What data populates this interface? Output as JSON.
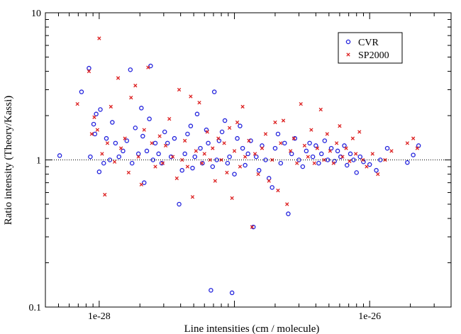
{
  "chart_data": {
    "type": "scatter",
    "title": "",
    "xlabel": "Line intensities (cm / molecule)",
    "ylabel": "Ratio intensity (Theory/Kassi)",
    "x_scale": "log",
    "y_scale": "log",
    "xlim": [
      4e-29,
      4e-26
    ],
    "ylim": [
      0.1,
      10
    ],
    "x_tick_labels": [
      "1e-28",
      "1e-26"
    ],
    "y_tick_labels": [
      "0.1",
      "1",
      "10"
    ],
    "reference_line": {
      "y": 1,
      "style": "dotted"
    },
    "grid": false,
    "legend_placement": "top-right",
    "series": [
      {
        "name": "CVR",
        "marker": "open-circle",
        "color": "#2222dd",
        "points": [
          [
            5.1e-29,
            1.07
          ],
          [
            7.4e-29,
            2.9
          ],
          [
            8.4e-29,
            4.2
          ],
          [
            8.6e-29,
            1.05
          ],
          [
            9.1e-29,
            1.75
          ],
          [
            9.3e-29,
            1.5
          ],
          [
            9.5e-29,
            2.05
          ],
          [
            1e-28,
            0.83
          ],
          [
            1.02e-28,
            2.2
          ],
          [
            1.08e-28,
            0.95
          ],
          [
            1.13e-28,
            1.4
          ],
          [
            1.2e-28,
            1.0
          ],
          [
            1.25e-28,
            1.8
          ],
          [
            1.32e-28,
            1.3
          ],
          [
            1.4e-28,
            1.05
          ],
          [
            1.5e-28,
            1.15
          ],
          [
            1.6e-28,
            1.35
          ],
          [
            1.7e-28,
            4.1
          ],
          [
            1.75e-28,
            0.95
          ],
          [
            1.85e-28,
            1.65
          ],
          [
            1.95e-28,
            1.1
          ],
          [
            2.05e-28,
            2.25
          ],
          [
            2.1e-28,
            1.45
          ],
          [
            2.15e-28,
            0.7
          ],
          [
            2.25e-28,
            1.15
          ],
          [
            2.35e-28,
            1.9
          ],
          [
            2.4e-28,
            4.35
          ],
          [
            2.5e-28,
            1.0
          ],
          [
            2.6e-28,
            1.3
          ],
          [
            2.75e-28,
            1.1
          ],
          [
            2.9e-28,
            0.95
          ],
          [
            3.05e-28,
            1.55
          ],
          [
            3.2e-28,
            1.3
          ],
          [
            3.4e-28,
            1.05
          ],
          [
            3.6e-28,
            1.4
          ],
          [
            3.9e-28,
            0.5
          ],
          [
            4.1e-28,
            0.85
          ],
          [
            4.3e-28,
            1.1
          ],
          [
            4.5e-28,
            1.5
          ],
          [
            4.75e-28,
            1.7
          ],
          [
            4.9e-28,
            0.88
          ],
          [
            5.1e-28,
            1.05
          ],
          [
            5.3e-28,
            2.05
          ],
          [
            5.6e-28,
            1.2
          ],
          [
            5.8e-28,
            0.95
          ],
          [
            6.2e-28,
            1.6
          ],
          [
            6.4e-28,
            1.3
          ],
          [
            6.7e-28,
            0.13
          ],
          [
            6.9e-28,
            0.9
          ],
          [
            7.1e-28,
            2.9
          ],
          [
            7.4e-28,
            1.0
          ],
          [
            7.7e-28,
            1.35
          ],
          [
            8.1e-28,
            1.55
          ],
          [
            8.5e-28,
            1.85
          ],
          [
            8.9e-28,
            0.95
          ],
          [
            9.2e-28,
            1.05
          ],
          [
            9.6e-28,
            0.125
          ],
          [
            1e-27,
            0.8
          ],
          [
            1.05e-27,
            1.4
          ],
          [
            1.1e-27,
            1.7
          ],
          [
            1.15e-27,
            1.2
          ],
          [
            1.2e-27,
            0.92
          ],
          [
            1.26e-27,
            1.1
          ],
          [
            1.32e-27,
            1.35
          ],
          [
            1.38e-27,
            0.35
          ],
          [
            1.45e-27,
            1.05
          ],
          [
            1.52e-27,
            0.85
          ],
          [
            1.6e-27,
            1.25
          ],
          [
            1.7e-27,
            1.0
          ],
          [
            1.8e-27,
            0.75
          ],
          [
            1.9e-27,
            0.65
          ],
          [
            2e-27,
            1.2
          ],
          [
            2.1e-27,
            1.5
          ],
          [
            2.2e-27,
            0.95
          ],
          [
            2.35e-27,
            1.3
          ],
          [
            2.5e-27,
            0.43
          ],
          [
            2.65e-27,
            1.1
          ],
          [
            2.8e-27,
            1.4
          ],
          [
            3e-27,
            1.0
          ],
          [
            3.2e-27,
            0.9
          ],
          [
            3.4e-27,
            1.15
          ],
          [
            3.6e-27,
            1.3
          ],
          [
            3.8e-27,
            1.05
          ],
          [
            4e-27,
            1.25
          ],
          [
            4.2e-27,
            0.95
          ],
          [
            4.4e-27,
            1.1
          ],
          [
            4.65e-27,
            1.35
          ],
          [
            4.9e-27,
            1.0
          ],
          [
            5.2e-27,
            1.2
          ],
          [
            5.5e-27,
            0.98
          ],
          [
            5.8e-27,
            1.15
          ],
          [
            6.1e-27,
            1.05
          ],
          [
            6.5e-27,
            1.25
          ],
          [
            6.8e-27,
            0.92
          ],
          [
            7.2e-27,
            1.1
          ],
          [
            7.6e-27,
            1.0
          ],
          [
            8e-27,
            0.82
          ],
          [
            8.5e-27,
            1.05
          ],
          [
            9e-27,
            0.97
          ],
          [
            1e-26,
            0.93
          ],
          [
            1.12e-26,
            0.85
          ],
          [
            1.2e-26,
            1.0
          ],
          [
            1.35e-26,
            1.2
          ],
          [
            1.9e-26,
            0.96
          ],
          [
            2.1e-26,
            1.08
          ],
          [
            2.3e-26,
            1.25
          ]
        ]
      },
      {
        "name": "SP2000",
        "marker": "cross",
        "color": "#dd2222",
        "points": [
          [
            6.9e-29,
            2.4
          ],
          [
            8.4e-29,
            4.0
          ],
          [
            8.8e-29,
            1.5
          ],
          [
            9.2e-29,
            1.95
          ],
          [
            9.7e-29,
            1.6
          ],
          [
            1e-28,
            6.7
          ],
          [
            1.05e-28,
            1.1
          ],
          [
            1.1e-28,
            0.58
          ],
          [
            1.15e-28,
            1.3
          ],
          [
            1.22e-28,
            2.3
          ],
          [
            1.3e-28,
            0.97
          ],
          [
            1.38e-28,
            3.6
          ],
          [
            1.45e-28,
            1.2
          ],
          [
            1.55e-28,
            1.4
          ],
          [
            1.65e-28,
            0.82
          ],
          [
            1.72e-28,
            2.65
          ],
          [
            1.85e-28,
            3.2
          ],
          [
            1.95e-28,
            1.05
          ],
          [
            2.05e-28,
            0.68
          ],
          [
            2.15e-28,
            1.6
          ],
          [
            2.3e-28,
            4.25
          ],
          [
            2.45e-28,
            1.3
          ],
          [
            2.6e-28,
            0.9
          ],
          [
            2.8e-28,
            1.45
          ],
          [
            2.95e-28,
            0.95
          ],
          [
            3.1e-28,
            1.25
          ],
          [
            3.3e-28,
            1.9
          ],
          [
            3.5e-28,
            1.05
          ],
          [
            3.75e-28,
            0.75
          ],
          [
            3.9e-28,
            3.0
          ],
          [
            4.1e-28,
            1.0
          ],
          [
            4.3e-28,
            1.35
          ],
          [
            4.5e-28,
            0.9
          ],
          [
            4.75e-28,
            2.7
          ],
          [
            4.9e-28,
            0.56
          ],
          [
            5.2e-28,
            1.15
          ],
          [
            5.5e-28,
            2.45
          ],
          [
            5.75e-28,
            0.95
          ],
          [
            6e-28,
            1.1
          ],
          [
            6.3e-28,
            1.55
          ],
          [
            6.6e-28,
            1.0
          ],
          [
            6.9e-28,
            1.2
          ],
          [
            7.2e-28,
            0.72
          ],
          [
            7.6e-28,
            1.4
          ],
          [
            8e-28,
            1.0
          ],
          [
            8.4e-28,
            1.3
          ],
          [
            8.8e-28,
            0.82
          ],
          [
            9.2e-28,
            1.65
          ],
          [
            9.6e-28,
            0.55
          ],
          [
            1e-27,
            1.15
          ],
          [
            1.05e-27,
            1.8
          ],
          [
            1.1e-27,
            0.9
          ],
          [
            1.15e-27,
            2.3
          ],
          [
            1.2e-27,
            1.05
          ],
          [
            1.28e-27,
            1.35
          ],
          [
            1.35e-27,
            0.35
          ],
          [
            1.42e-27,
            1.1
          ],
          [
            1.5e-27,
            0.8
          ],
          [
            1.6e-27,
            1.2
          ],
          [
            1.7e-27,
            1.5
          ],
          [
            1.8e-27,
            0.72
          ],
          [
            1.9e-27,
            1.0
          ],
          [
            2e-27,
            1.8
          ],
          [
            2.1e-27,
            0.62
          ],
          [
            2.2e-27,
            1.3
          ],
          [
            2.3e-27,
            1.85
          ],
          [
            2.45e-27,
            0.5
          ],
          [
            2.6e-27,
            1.15
          ],
          [
            2.75e-27,
            1.4
          ],
          [
            2.9e-27,
            0.95
          ],
          [
            3.1e-27,
            2.4
          ],
          [
            3.3e-27,
            1.25
          ],
          [
            3.5e-27,
            1.05
          ],
          [
            3.7e-27,
            1.6
          ],
          [
            3.9e-27,
            0.95
          ],
          [
            4.1e-27,
            1.2
          ],
          [
            4.35e-27,
            2.2
          ],
          [
            4.6e-27,
            1.0
          ],
          [
            4.85e-27,
            1.5
          ],
          [
            5.1e-27,
            1.15
          ],
          [
            5.4e-27,
            0.95
          ],
          [
            5.7e-27,
            1.3
          ],
          [
            6e-27,
            1.7
          ],
          [
            6.3e-27,
            1.05
          ],
          [
            6.7e-27,
            1.2
          ],
          [
            7.1e-27,
            0.98
          ],
          [
            7.5e-27,
            1.4
          ],
          [
            7.9e-27,
            1.1
          ],
          [
            8.4e-27,
            1.55
          ],
          [
            8.9e-27,
            1.0
          ],
          [
            9.5e-27,
            0.9
          ],
          [
            1.05e-26,
            1.1
          ],
          [
            1.15e-26,
            0.8
          ],
          [
            1.3e-26,
            1.0
          ],
          [
            1.45e-26,
            1.15
          ],
          [
            1.9e-26,
            1.3
          ],
          [
            2.1e-26,
            1.4
          ],
          [
            2.25e-26,
            1.2
          ]
        ]
      }
    ]
  }
}
